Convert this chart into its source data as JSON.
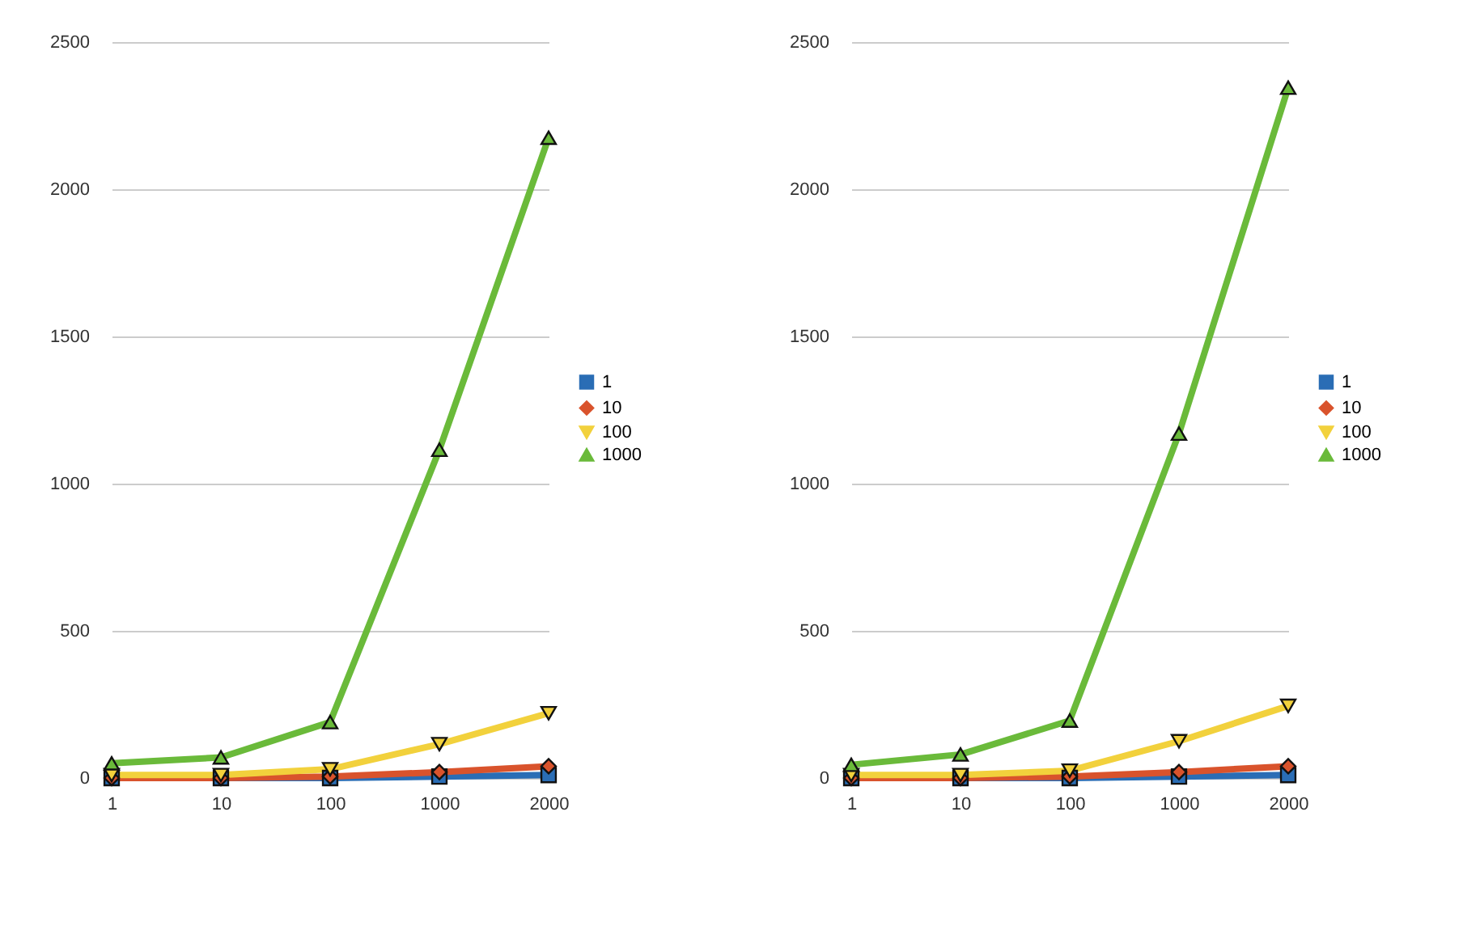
{
  "chart_data": [
    {
      "type": "line",
      "categories": [
        "1",
        "10",
        "100",
        "1000",
        "2000"
      ],
      "ylim": [
        0,
        2500
      ],
      "yticks": [
        0,
        500,
        1000,
        1500,
        2000,
        2500
      ],
      "grid": "y",
      "legend": "right",
      "line_style": "solid",
      "series": [
        {
          "name": "1",
          "color": "#2a6db5",
          "marker": "square",
          "values": [
            0,
            0,
            0,
            5,
            10
          ]
        },
        {
          "name": "10",
          "color": "#d9532c",
          "marker": "diamond",
          "values": [
            0,
            0,
            5,
            20,
            40
          ]
        },
        {
          "name": "100",
          "color": "#f2d13c",
          "marker": "triangle-down",
          "values": [
            10,
            10,
            30,
            115,
            220
          ]
        },
        {
          "name": "1000",
          "color": "#6aba3a",
          "marker": "triangle",
          "values": [
            50,
            70,
            190,
            1115,
            2175
          ]
        }
      ]
    },
    {
      "type": "line",
      "categories": [
        "1",
        "10",
        "100",
        "1000",
        "2000"
      ],
      "ylim": [
        0,
        2500
      ],
      "yticks": [
        0,
        500,
        1000,
        1500,
        2000,
        2500
      ],
      "grid": "y",
      "legend": "right",
      "line_style": "solid",
      "series": [
        {
          "name": "1",
          "color": "#2a6db5",
          "marker": "square",
          "values": [
            0,
            0,
            0,
            5,
            10
          ]
        },
        {
          "name": "10",
          "color": "#d9532c",
          "marker": "diamond",
          "values": [
            0,
            0,
            5,
            20,
            40
          ]
        },
        {
          "name": "100",
          "color": "#f2d13c",
          "marker": "triangle-down",
          "values": [
            10,
            10,
            25,
            125,
            245
          ]
        },
        {
          "name": "1000",
          "color": "#6aba3a",
          "marker": "triangle",
          "values": [
            45,
            80,
            195,
            1170,
            2345
          ]
        }
      ]
    }
  ]
}
